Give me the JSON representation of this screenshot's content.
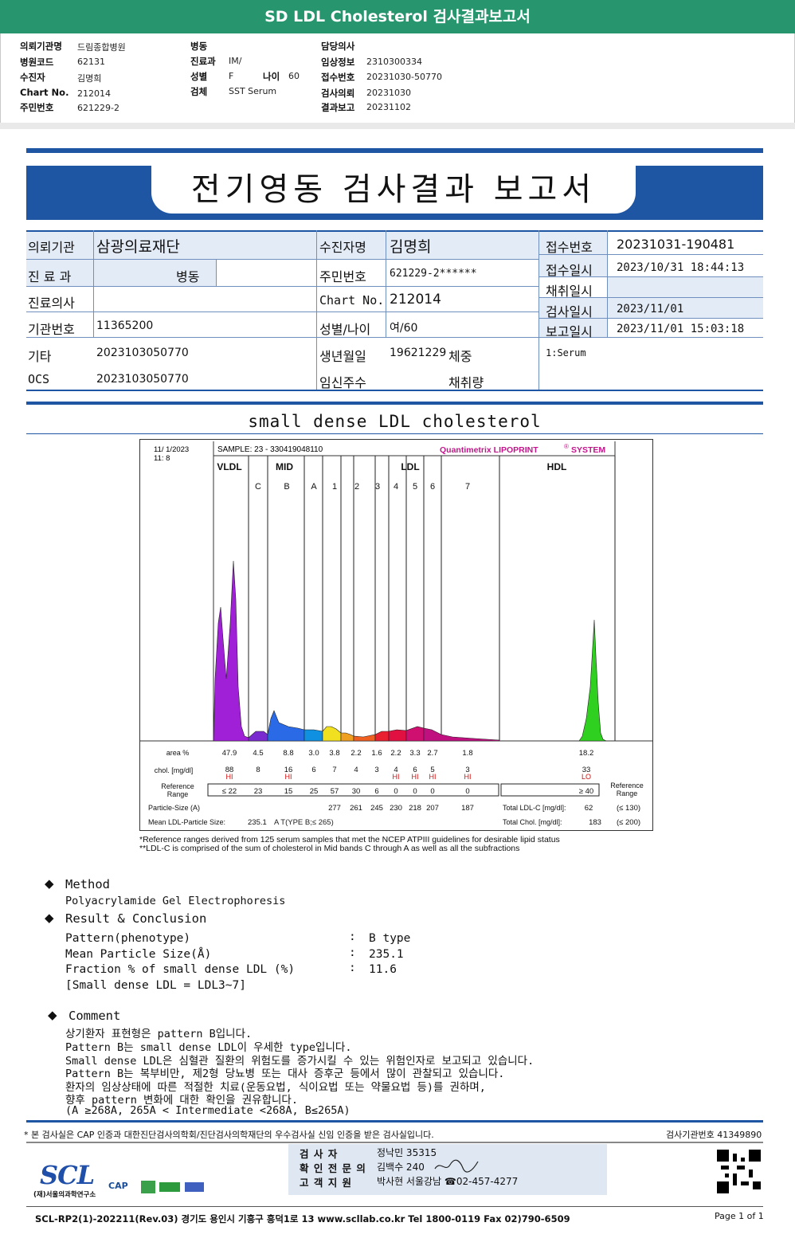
{
  "banner": {
    "title": "SD LDL Cholesterol 검사결과보고서"
  },
  "header": {
    "col1": [
      {
        "label": "의뢰기관명",
        "value": "드림종합병원"
      },
      {
        "label": "병원코드",
        "value": "62131"
      },
      {
        "label": "수진자",
        "value": "김명희"
      },
      {
        "label": "Chart No.",
        "value": "212014"
      },
      {
        "label": "주민번호",
        "value": "621229-2"
      }
    ],
    "col2": [
      {
        "label": "병동",
        "value": ""
      },
      {
        "label": "진료과",
        "value": "IM/"
      },
      {
        "label": "성별",
        "value": "F"
      },
      {
        "label": "검체",
        "value": "SST Serum"
      }
    ],
    "age": {
      "label": "나이",
      "value": "60"
    },
    "col3": [
      {
        "label": "담당의사",
        "value": ""
      },
      {
        "label": "임상정보",
        "value": "2310300334"
      },
      {
        "label": "접수번호",
        "value": "20231030-50770"
      },
      {
        "label": "검사의뢰",
        "value": "20231030"
      },
      {
        "label": "결과보고",
        "value": "20231102"
      }
    ]
  },
  "report_title": "전기영동 검사결과 보고서",
  "patient": {
    "inst_label": "의뢰기관",
    "inst_value": "삼광의료재단",
    "dept_label": "진 료 과",
    "dept_value": "병동",
    "doctor_label": "진료의사",
    "doctor_value": "",
    "instno_label": "기관번호",
    "instno_value": "11365200",
    "etc_label": "기타",
    "etc_value": "2023103050770",
    "ocs_label": "OCS",
    "ocs_value": "2023103050770",
    "name_label": "수진자명",
    "name_value": "김명희",
    "rrn_label": "주민번호",
    "rrn_value": "621229-2******",
    "chart_label": "Chart No.",
    "chart_value": "212014",
    "sexage_label": "성별/나이",
    "sexage_value": "여/60",
    "birth_label": "생년월일",
    "birth_value": "19621229",
    "weight_label": "체중",
    "preg_label": "임신주수",
    "vol_label": "채취량",
    "recvno_label": "접수번호",
    "recvno_value": "20231031-190481",
    "recvdt_label": "접수일시",
    "recvdt_value": "2023/10/31 18:44:13",
    "colldt_label": "채취일시",
    "colldt_value": "",
    "testdt_label": "검사일시",
    "testdt_value": "2023/11/01",
    "rptdt_label": "보고일시",
    "rptdt_value": "2023/11/01 15:03:18",
    "specimen": "1:Serum"
  },
  "section_title": "small dense LDL cholesterol",
  "chart_data": {
    "type": "table",
    "date": "11/  1/2023",
    "time": "11:  8",
    "sample": "SAMPLE:   23 - 330419048110",
    "brand": "Quantimetrix  LIPOPRINT",
    "brand_tail": "SYSTEM",
    "brand_reg": "®",
    "groups": [
      "VLDL",
      "MID",
      "LDL",
      "HDL"
    ],
    "bands": [
      "C",
      "B",
      "A",
      "1",
      "2",
      "3",
      "4",
      "5",
      "6",
      "7"
    ],
    "row_area_label": "area %",
    "area": [
      "47.9",
      "4.5",
      "8.8",
      "3.0",
      "3.8",
      "2.2",
      "1.6",
      "2.2",
      "3.3",
      "2.7",
      "1.8",
      "18.2"
    ],
    "row_chol_label": "chol. [mg/dl]",
    "chol": [
      "88",
      "8",
      "16",
      "6",
      "7",
      "4",
      "3",
      "4",
      "6",
      "5",
      "3",
      "33"
    ],
    "flags": [
      "HI",
      "",
      "HI",
      "",
      "",
      "",
      "",
      "HI",
      "HI",
      "HI",
      "HI",
      "LO"
    ],
    "ref_label1": "Reference",
    "ref_label2": "Range",
    "ref": [
      "≤ 22",
      "23",
      "15",
      "25",
      "57",
      "30",
      "6",
      "0",
      "0",
      "0",
      "0",
      "≥ 40"
    ],
    "ref_right1": "Reference",
    "ref_right2": "Range",
    "particle_label": "Particle-Size (A)",
    "particle": [
      "277",
      "261",
      "245",
      "230",
      "218",
      "207",
      "187"
    ],
    "mean_label": "Mean LDL-Particle Size:",
    "mean_value": "235.1",
    "mean_type": "A T(YPE B;≤ 265)",
    "total_ldl_label": "Total LDL-C  [mg/dl]:",
    "total_ldl": "62",
    "total_ldl_ref": "(≤ 130)",
    "total_chol_label": "Total Chol.  [mg/dl]:",
    "total_chol": "183",
    "total_chol_ref": "(≤ 200)",
    "footnote1": "*Reference ranges derived from 125 serum samples that met the NCEP ATPIII guidelines for desirable lipid status",
    "footnote2": "**LDL-C is comprised of the sum of cholesterol in Mid bands C through A as well as all the subfractions",
    "colors": {
      "vldl": "#a020d8",
      "c": "#7a2bd0",
      "b": "#2a6ae6",
      "a": "#1090e0",
      "ldl1": "#f0e020",
      "ldl2": "#f0a020",
      "ldl3": "#f06020",
      "ldl4": "#e82030",
      "ldl5": "#e01040",
      "ldl6": "#d01070",
      "ldl7": "#c01080",
      "hdl": "#30d020"
    }
  },
  "method": {
    "title": "Method",
    "value": "Polyacrylamide Gel Electrophoresis"
  },
  "result": {
    "title": "Result & Conclusion",
    "rows": [
      {
        "label": "Pattern(phenotype)",
        "value": "B type"
      },
      {
        "label": "Mean Particle Size(Å)",
        "value": "235.1"
      },
      {
        "label": "Fraction % of small dense LDL (%)",
        "value": "11.6"
      }
    ],
    "note": "[Small dense LDL = LDL3~7]",
    "colon": ":"
  },
  "comment": {
    "title": "Comment",
    "lines": [
      "상기환자 표현형은 pattern B입니다.",
      "Pattern B는 small dense LDL이 우세한 type입니다.",
      "Small dense LDL은 심혈관 질환의 위험도를 증가시킬 수 있는 위험인자로 보고되고 있습니다.",
      "Pattern B는 복부비만, 제2형 당뇨병 또는 대사 증후군 등에서 많이 관찰되고 있습니다.",
      "환자의 임상상태에 따른 적절한 치료(운동요법, 식이요법 또는 약물요법 등)를 권하며,",
      "향후 pattern 변화에 대한 확인을 권유합니다.",
      "(A ≥268A, 265A < Intermediate <268A, B≤265A)"
    ]
  },
  "footer": {
    "cert": "* 본 검사실은 CAP 인증과 대한진단검사의학회/진단검사의학재단의 우수검사실 신임 인증을 받은 검사실입니다.",
    "lab_no": "검사기관번호  41349890",
    "tester_label": "검   사   자",
    "tester": "정낙민 35315",
    "confirm_label": "확 인 전 문 의",
    "confirm": "김백수 240",
    "support_label": "고 객 지 원",
    "support": "박사현 서울강남 ☎02-457-4277",
    "logo": "SCL",
    "logo_sub": "(재)서울의과학연구소",
    "cap": "CAP",
    "address": "SCL-RP2(1)-202211(Rev.03)  경기도 용인시 기흥구 흥덕1로 13  www.scllab.co.kr   Tel 1800-0119    Fax 02)790-6509",
    "page": "Page 1 of 1"
  }
}
